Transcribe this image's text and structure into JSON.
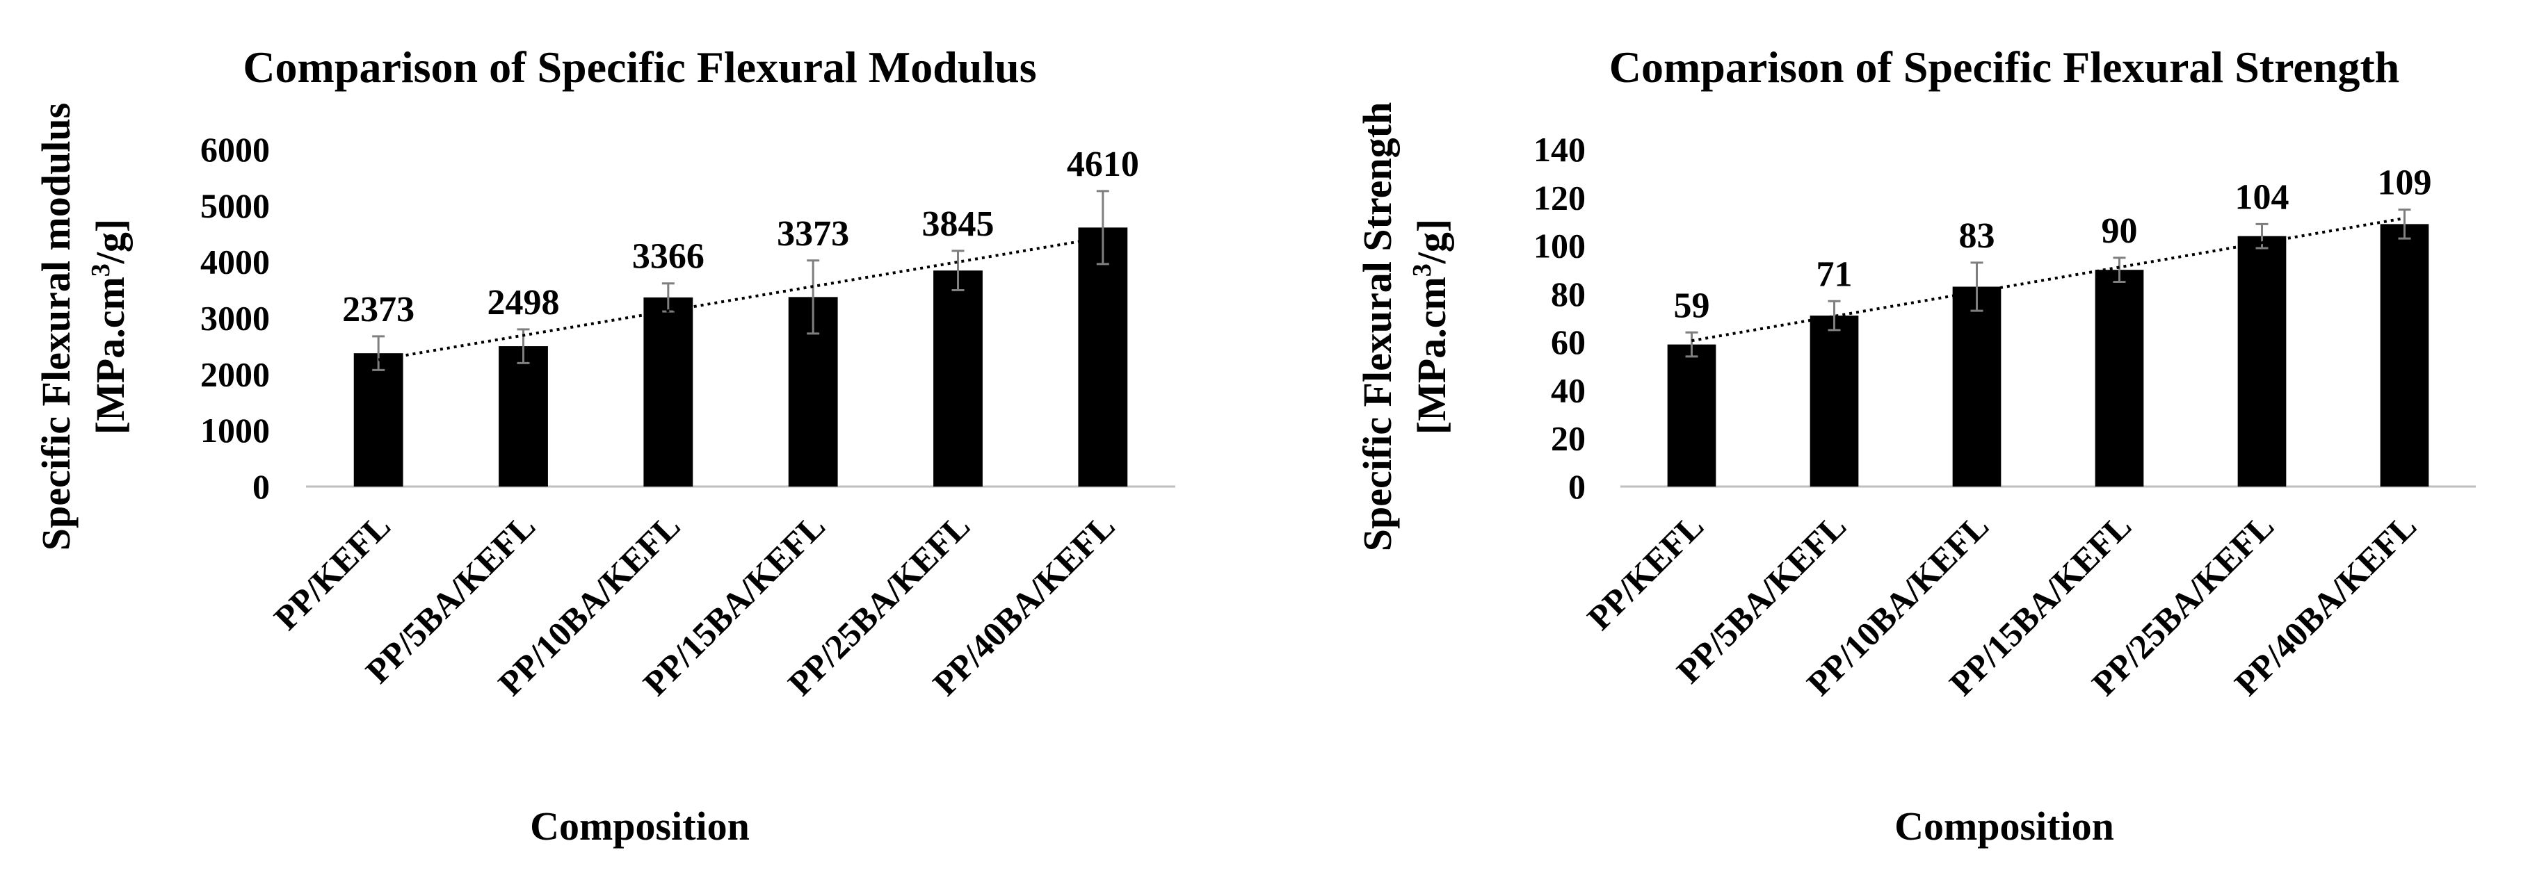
{
  "colors": {
    "bar": "#000000",
    "error_bar": "#7f7f7f",
    "trendline": "#000000",
    "axis": "#bfbfbf"
  },
  "chart_data": [
    {
      "type": "bar",
      "title": "Comparison of Specific Flexural Modulus",
      "xlabel": "Composition",
      "ylabel": "Specific Flexural modulus",
      "ylabel_unit_pre": "[MPa.cm",
      "ylabel_unit_sup": "3",
      "ylabel_unit_post": "/g]",
      "ylim": [
        0,
        6000
      ],
      "yticks": [
        0,
        1000,
        2000,
        3000,
        4000,
        5000,
        6000
      ],
      "categories": [
        "PP/KEFL",
        "PP/5BA/KEFL",
        "PP/10BA/KEFL",
        "PP/15BA/KEFL",
        "PP/25BA/KEFL",
        "PP/40BA/KEFL"
      ],
      "values": [
        2373,
        2498,
        3366,
        3373,
        3845,
        4610
      ],
      "data_labels": [
        "2373",
        "2498",
        "3366",
        "3373",
        "3845",
        "4610"
      ],
      "errors": [
        300,
        300,
        250,
        650,
        350,
        650
      ],
      "trendline": "linear (dotted)",
      "grid": false
    },
    {
      "type": "bar",
      "title": "Comparison of Specific Flexural Strength",
      "xlabel": "Composition",
      "ylabel": "Specific Flexural Strength",
      "ylabel_unit_pre": "[MPa.cm",
      "ylabel_unit_sup": "3",
      "ylabel_unit_post": "/g]",
      "ylim": [
        0,
        140
      ],
      "yticks": [
        0,
        20,
        40,
        60,
        80,
        100,
        120,
        140
      ],
      "categories": [
        "PP/KEFL",
        "PP/5BA/KEFL",
        "PP/10BA/KEFL",
        "PP/15BA/KEFL",
        "PP/25BA/KEFL",
        "PP/40BA/KEFL"
      ],
      "values": [
        59,
        71,
        83,
        90,
        104,
        109
      ],
      "data_labels": [
        "59",
        "71",
        "83",
        "90",
        "104",
        "109"
      ],
      "errors": [
        5,
        6,
        10,
        5,
        5,
        6
      ],
      "trendline": "linear (dotted)",
      "grid": false
    }
  ]
}
